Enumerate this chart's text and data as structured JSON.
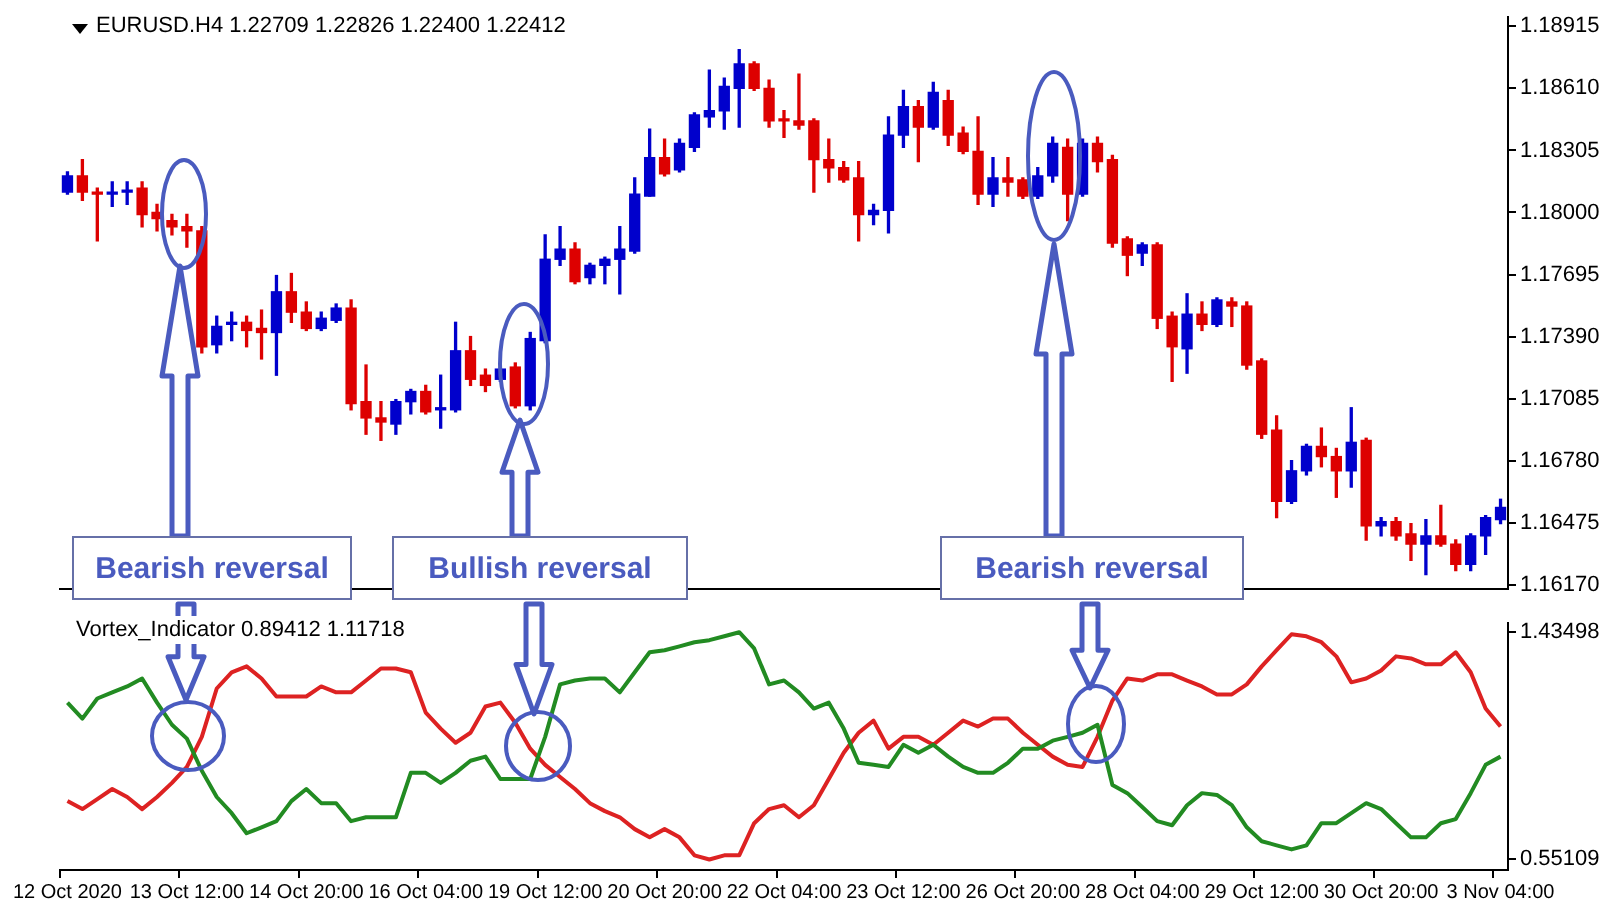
{
  "chart_data": [
    {
      "type": "candlestick",
      "title": "EURUSD.H4 1.22709 1.22826 1.22400 1.22412",
      "tick_labels": "y",
      "categories": [
        null,
        null,
        null,
        null,
        null,
        null,
        null,
        null,
        null,
        null,
        null,
        null,
        null,
        null,
        null,
        null,
        null,
        null,
        null,
        null,
        null,
        null,
        null,
        null,
        null,
        null,
        null,
        null,
        null,
        null,
        null,
        null,
        null,
        null,
        null,
        null,
        null,
        null,
        null,
        null,
        null,
        null,
        null,
        null,
        null,
        null,
        null,
        null,
        null,
        null,
        null,
        null,
        null,
        null,
        null,
        null,
        null,
        null,
        null,
        null,
        null,
        null,
        null,
        null,
        null,
        null,
        null,
        null,
        null,
        null,
        null,
        null,
        null,
        null,
        null,
        null,
        null,
        null,
        null,
        null,
        null,
        null,
        null,
        null,
        null,
        null,
        null,
        null,
        null,
        null,
        null,
        null,
        null,
        null,
        null,
        null,
        null
      ],
      "ohlc": [
        [
          1.181,
          1.182,
          1.1809,
          1.1818
        ],
        [
          1.1818,
          1.1826,
          1.1806,
          1.181
        ],
        [
          1.181,
          1.1812,
          1.1786,
          1.1809
        ],
        [
          1.1809,
          1.1815,
          1.1803,
          1.181
        ],
        [
          1.181,
          1.1815,
          1.1804,
          1.1811
        ],
        [
          1.1812,
          1.1815,
          1.1793,
          1.1799
        ],
        [
          1.18,
          1.1804,
          1.1791,
          1.1797
        ],
        [
          1.1796,
          1.1799,
          1.1789,
          1.1793
        ],
        [
          1.1793,
          1.1799,
          1.1783,
          1.1791
        ],
        [
          1.1791,
          1.1793,
          1.1731,
          1.1734
        ],
        [
          1.1735,
          1.1749,
          1.1731,
          1.1744
        ],
        [
          1.1745,
          1.1751,
          1.1737,
          1.1746
        ],
        [
          1.1746,
          1.1749,
          1.1734,
          1.1742
        ],
        [
          1.1743,
          1.1752,
          1.1728,
          1.1741
        ],
        [
          1.1741,
          1.1769,
          1.172,
          1.1761
        ],
        [
          1.1761,
          1.177,
          1.1746,
          1.1751
        ],
        [
          1.1751,
          1.1756,
          1.1742,
          1.1743
        ],
        [
          1.1743,
          1.1751,
          1.1742,
          1.1748
        ],
        [
          1.1747,
          1.1755,
          1.1746,
          1.1753
        ],
        [
          1.1753,
          1.1757,
          1.1703,
          1.1706
        ],
        [
          1.1707,
          1.1725,
          1.1691,
          1.1699
        ],
        [
          1.1699,
          1.1707,
          1.1688,
          1.1697
        ],
        [
          1.1696,
          1.1708,
          1.1691,
          1.1707
        ],
        [
          1.1707,
          1.1713,
          1.1701,
          1.1712
        ],
        [
          1.1712,
          1.1715,
          1.1701,
          1.1702
        ],
        [
          1.1703,
          1.172,
          1.1694,
          1.1704
        ],
        [
          1.1703,
          1.1746,
          1.1702,
          1.1732
        ],
        [
          1.1732,
          1.1739,
          1.1715,
          1.1718
        ],
        [
          1.172,
          1.1723,
          1.1712,
          1.1715
        ],
        [
          1.1718,
          1.1724,
          1.1717,
          1.1723
        ],
        [
          1.1724,
          1.1726,
          1.1704,
          1.1705
        ],
        [
          1.1705,
          1.1741,
          1.1703,
          1.1738
        ],
        [
          1.1737,
          1.1789,
          1.1736,
          1.1777
        ],
        [
          1.1777,
          1.1793,
          1.1774,
          1.1782
        ],
        [
          1.1782,
          1.1785,
          1.1765,
          1.1766
        ],
        [
          1.1768,
          1.1775,
          1.1765,
          1.1774
        ],
        [
          1.1774,
          1.1778,
          1.1765,
          1.1777
        ],
        [
          1.1777,
          1.1793,
          1.176,
          1.1782
        ],
        [
          1.1781,
          1.1817,
          1.178,
          1.1809
        ],
        [
          1.1808,
          1.1841,
          1.1808,
          1.1827
        ],
        [
          1.1827,
          1.1836,
          1.1818,
          1.1819
        ],
        [
          1.1821,
          1.1836,
          1.182,
          1.1834
        ],
        [
          1.1832,
          1.1849,
          1.183,
          1.1848
        ],
        [
          1.1847,
          1.187,
          1.1842,
          1.185
        ],
        [
          1.185,
          1.1866,
          1.1841,
          1.1862
        ],
        [
          1.1861,
          1.188,
          1.1842,
          1.1873
        ],
        [
          1.1873,
          1.1874,
          1.186,
          1.1861
        ],
        [
          1.1861,
          1.1865,
          1.1842,
          1.1845
        ],
        [
          1.1846,
          1.185,
          1.1837,
          1.1845
        ],
        [
          1.1845,
          1.1868,
          1.1841,
          1.1843
        ],
        [
          1.1845,
          1.1846,
          1.181,
          1.1826
        ],
        [
          1.1826,
          1.1836,
          1.1815,
          1.1822
        ],
        [
          1.1822,
          1.1825,
          1.1815,
          1.1816
        ],
        [
          1.1817,
          1.1825,
          1.1786,
          1.1799
        ],
        [
          1.1799,
          1.1804,
          1.1794,
          1.1801
        ],
        [
          1.1801,
          1.1847,
          1.179,
          1.1838
        ],
        [
          1.1838,
          1.186,
          1.1832,
          1.1852
        ],
        [
          1.1852,
          1.1855,
          1.1825,
          1.1842
        ],
        [
          1.1842,
          1.1864,
          1.1841,
          1.1859
        ],
        [
          1.1855,
          1.186,
          1.1833,
          1.1838
        ],
        [
          1.1839,
          1.1842,
          1.1829,
          1.183
        ],
        [
          1.183,
          1.1847,
          1.1804,
          1.1809
        ],
        [
          1.1809,
          1.1827,
          1.1803,
          1.1817
        ],
        [
          1.1817,
          1.1827,
          1.1808,
          1.1815
        ],
        [
          1.1816,
          1.1817,
          1.1807,
          1.1808
        ],
        [
          1.1808,
          1.1822,
          1.1807,
          1.1818
        ],
        [
          1.1818,
          1.1837,
          1.1815,
          1.1834
        ],
        [
          1.1832,
          1.1836,
          1.1796,
          1.1809
        ],
        [
          1.1809,
          1.1836,
          1.1808,
          1.1834
        ],
        [
          1.1834,
          1.1837,
          1.182,
          1.1825
        ],
        [
          1.1826,
          1.1828,
          1.1783,
          1.1785
        ],
        [
          1.1787,
          1.1788,
          1.1769,
          1.1779
        ],
        [
          1.178,
          1.1785,
          1.1774,
          1.1784
        ],
        [
          1.1784,
          1.1785,
          1.1743,
          1.1748
        ],
        [
          1.1749,
          1.1751,
          1.1717,
          1.1734
        ],
        [
          1.1733,
          1.176,
          1.1721,
          1.175
        ],
        [
          1.175,
          1.1756,
          1.1742,
          1.1745
        ],
        [
          1.1745,
          1.1758,
          1.1744,
          1.1757
        ],
        [
          1.1756,
          1.1758,
          1.1744,
          1.1754
        ],
        [
          1.1754,
          1.1756,
          1.1723,
          1.1725
        ],
        [
          1.1727,
          1.1728,
          1.1689,
          1.1691
        ],
        [
          1.1693,
          1.17,
          1.165,
          1.1658
        ],
        [
          1.1658,
          1.1678,
          1.1657,
          1.1673
        ],
        [
          1.1673,
          1.1686,
          1.1671,
          1.1685
        ],
        [
          1.1685,
          1.1694,
          1.1675,
          1.168
        ],
        [
          1.168,
          1.1684,
          1.166,
          1.1673
        ],
        [
          1.1673,
          1.1704,
          1.1665,
          1.1687
        ],
        [
          1.1688,
          1.1689,
          1.1639,
          1.1646
        ],
        [
          1.1646,
          1.165,
          1.1641,
          1.1648
        ],
        [
          1.1648,
          1.165,
          1.1639,
          1.1641
        ],
        [
          1.1642,
          1.1647,
          1.1629,
          1.1637
        ],
        [
          1.1637,
          1.1649,
          1.1622,
          1.1641
        ],
        [
          1.1641,
          1.1656,
          1.1636,
          1.1637
        ],
        [
          1.1637,
          1.1639,
          1.1624,
          1.1627
        ],
        [
          1.1627,
          1.1642,
          1.1624,
          1.1641
        ],
        [
          1.1641,
          1.1651,
          1.1632,
          1.165
        ],
        [
          1.1649,
          1.1659,
          1.1647,
          1.1655
        ]
      ],
      "colors": [
        "#0000cc",
        "#dd0000",
        "#dd0000",
        "#0000cc",
        "#0000cc",
        "#dd0000",
        "#dd0000",
        "#dd0000",
        "#dd0000",
        "#dd0000",
        "#0000cc",
        "#0000cc",
        "#dd0000",
        "#dd0000",
        "#0000cc",
        "#dd0000",
        "#dd0000",
        "#0000cc",
        "#0000cc",
        "#dd0000",
        "#dd0000",
        "#dd0000",
        "#0000cc",
        "#0000cc",
        "#dd0000",
        "#0000cc",
        "#0000cc",
        "#dd0000",
        "#dd0000",
        "#0000cc",
        "#dd0000",
        "#0000cc",
        "#0000cc",
        "#0000cc",
        "#dd0000",
        "#0000cc",
        "#0000cc",
        "#0000cc",
        "#0000cc",
        "#0000cc",
        "#dd0000",
        "#0000cc",
        "#0000cc",
        "#0000cc",
        "#0000cc",
        "#0000cc",
        "#dd0000",
        "#dd0000",
        "#dd0000",
        "#dd0000",
        "#dd0000",
        "#dd0000",
        "#dd0000",
        "#dd0000",
        "#0000cc",
        "#0000cc",
        "#0000cc",
        "#dd0000",
        "#0000cc",
        "#dd0000",
        "#dd0000",
        "#dd0000",
        "#0000cc",
        "#dd0000",
        "#dd0000",
        "#0000cc",
        "#0000cc",
        "#dd0000",
        "#0000cc",
        "#dd0000",
        "#dd0000",
        "#dd0000",
        "#0000cc",
        "#dd0000",
        "#dd0000",
        "#0000cc",
        "#dd0000",
        "#0000cc",
        "#dd0000",
        "#dd0000",
        "#dd0000",
        "#dd0000",
        "#0000cc",
        "#0000cc",
        "#dd0000",
        "#dd0000",
        "#0000cc",
        "#dd0000",
        "#0000cc",
        "#dd0000",
        "#dd0000",
        "#0000cc",
        "#dd0000",
        "#dd0000",
        "#0000cc",
        "#0000cc",
        "#0000cc"
      ],
      "ylim": [
        1.1615,
        1.1896
      ],
      "yticks": [
        {
          "value": 1.1617,
          "label": "1.16170"
        },
        {
          "value": 1.16475,
          "label": "1.16475"
        },
        {
          "value": 1.1678,
          "label": "1.16780"
        },
        {
          "value": 1.17085,
          "label": "1.17085"
        },
        {
          "value": 1.1739,
          "label": "1.17390"
        },
        {
          "value": 1.17695,
          "label": "1.17695"
        },
        {
          "value": 1.18,
          "label": "1.18000"
        },
        {
          "value": 1.18305,
          "label": "1.18305"
        },
        {
          "value": 1.1861,
          "label": "1.18610"
        },
        {
          "value": 1.18915,
          "label": "1.18915"
        }
      ],
      "annotations": [
        "Bearish reversal",
        "Bullish reversal",
        "Bearish reversal"
      ]
    },
    {
      "type": "line",
      "title": "Vortex_Indicator 0.89412 1.11718",
      "categories": [
        "12 Oct 2020",
        null,
        null,
        null,
        null,
        null,
        null,
        null,
        "13 Oct 12:00",
        null,
        null,
        null,
        null,
        null,
        null,
        null,
        "14 Oct 20:00",
        null,
        null,
        null,
        null,
        null,
        null,
        null,
        "16 Oct 04:00",
        null,
        null,
        null,
        null,
        null,
        null,
        null,
        "19 Oct 12:00",
        null,
        null,
        null,
        null,
        null,
        null,
        null,
        "20 Oct 20:00",
        null,
        null,
        null,
        null,
        null,
        null,
        null,
        "22 Oct 04:00",
        null,
        null,
        null,
        null,
        null,
        null,
        null,
        "23 Oct 12:00",
        null,
        null,
        null,
        null,
        null,
        null,
        null,
        "26 Oct 20:00",
        null,
        null,
        null,
        null,
        null,
        null,
        null,
        "28 Oct 04:00",
        null,
        null,
        null,
        null,
        null,
        null,
        null,
        "29 Oct 12:00",
        null,
        null,
        null,
        null,
        null,
        null,
        null,
        "30 Oct 20:00",
        null,
        null,
        null,
        null,
        null,
        null,
        null,
        "3 Nov 04:00"
      ],
      "series": [
        {
          "color": "#228b22",
          "values": [
            1.161,
            1.099,
            1.177,
            1.201,
            1.224,
            1.255,
            1.161,
            1.075,
            1.021,
            0.896,
            0.794,
            0.731,
            0.653,
            0.676,
            0.7,
            0.778,
            0.825,
            0.77,
            0.77,
            0.7,
            0.715,
            0.715,
            0.715,
            0.888,
            0.888,
            0.849,
            0.888,
            0.935,
            0.951,
            0.864,
            0.864,
            0.864,
            1.028,
            1.232,
            1.247,
            1.255,
            1.255,
            1.201,
            1.279,
            1.357,
            1.365,
            1.38,
            1.396,
            1.404,
            1.419,
            1.435,
            1.372,
            1.232,
            1.247,
            1.201,
            1.138,
            1.161,
            1.06,
            0.927,
            0.919,
            0.911,
            0.997,
            0.966,
            0.997,
            0.951,
            0.911,
            0.888,
            0.888,
            0.927,
            0.982,
            0.982,
            1.013,
            1.028,
            1.044,
            1.075,
            0.841,
            0.809,
            0.755,
            0.7,
            0.684,
            0.762,
            0.809,
            0.802,
            0.762,
            0.676,
            0.622,
            0.606,
            0.59,
            0.606,
            0.692,
            0.692,
            0.731,
            0.77,
            0.747,
            0.692,
            0.637,
            0.637,
            0.692,
            0.708,
            0.809,
            0.919,
            0.951
          ]
        },
        {
          "color": "#dd2222",
          "values": [
            0.778,
            0.747,
            0.786,
            0.825,
            0.794,
            0.747,
            0.794,
            0.849,
            0.911,
            1.028,
            1.216,
            1.279,
            1.302,
            1.255,
            1.185,
            1.185,
            1.185,
            1.224,
            1.201,
            1.201,
            1.247,
            1.294,
            1.294,
            1.279,
            1.122,
            1.06,
            1.005,
            1.044,
            1.146,
            1.161,
            1.083,
            0.982,
            0.919,
            0.872,
            0.825,
            0.77,
            0.739,
            0.715,
            0.669,
            0.637,
            0.669,
            0.637,
            0.567,
            0.551,
            0.567,
            0.567,
            0.692,
            0.747,
            0.762,
            0.715,
            0.762,
            0.864,
            0.966,
            1.044,
            1.091,
            0.982,
            1.028,
            1.028,
            0.997,
            1.044,
            1.091,
            1.068,
            1.099,
            1.099,
            1.044,
            0.997,
            0.951,
            0.919,
            0.911,
            1.028,
            1.169,
            1.255,
            1.247,
            1.271,
            1.271,
            1.247,
            1.224,
            1.193,
            1.193,
            1.232,
            1.302,
            1.365,
            1.427,
            1.419,
            1.396,
            1.341,
            1.24,
            1.255,
            1.286,
            1.341,
            1.333,
            1.31,
            1.31,
            1.357,
            1.279,
            1.138,
            1.068
          ]
        }
      ],
      "ylim": [
        0.51,
        1.47
      ],
      "yticks": [
        {
          "value": 0.55109,
          "label": "0.55109"
        },
        {
          "value": 1.43498,
          "label": "1.43498"
        }
      ]
    }
  ]
}
